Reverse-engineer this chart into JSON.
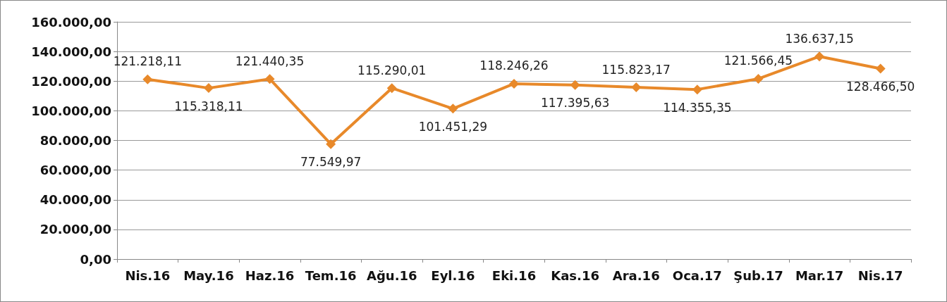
{
  "chart_data": {
    "type": "line",
    "categories": [
      "Nis.16",
      "May.16",
      "Haz.16",
      "Tem.16",
      "Ağu.16",
      "Eyl.16",
      "Eki.16",
      "Kas.16",
      "Ara.16",
      "Oca.17",
      "Şub.17",
      "Mar.17",
      "Nis.17"
    ],
    "series": [
      {
        "color": "#e8892a",
        "values": [
          121218.11,
          115318.11,
          121440.35,
          77549.97,
          115290.01,
          101451.29,
          118246.26,
          117395.63,
          115823.17,
          114355.35,
          121566.45,
          136637.15,
          128466.5
        ],
        "value_labels": [
          "121.218,11",
          "115.318,11",
          "121.440,35",
          "77.549,97",
          "115.290,01",
          "101.451,29",
          "118.246,26",
          "117.395,63",
          "115.823,17",
          "114.355,35",
          "121.566,45",
          "136.637,15",
          "128.466,50"
        ]
      }
    ],
    "ylim": [
      0,
      160000
    ],
    "yticks": [
      {
        "value": 0,
        "label": "0,00"
      },
      {
        "value": 20000,
        "label": "20.000,00"
      },
      {
        "value": 40000,
        "label": "40.000,00"
      },
      {
        "value": 60000,
        "label": "60.000,00"
      },
      {
        "value": 80000,
        "label": "80.000,00"
      },
      {
        "value": 100000,
        "label": "100.000,00"
      },
      {
        "value": 120000,
        "label": "120.000,00"
      },
      {
        "value": 140000,
        "label": "140.000,00"
      },
      {
        "value": 160000,
        "label": "160.000,00"
      }
    ],
    "grid": "y",
    "marker": "diamond",
    "line_style": "solid"
  }
}
